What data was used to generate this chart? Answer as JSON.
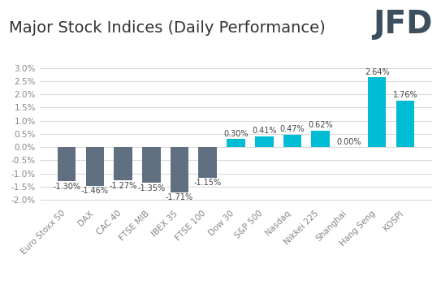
{
  "categories": [
    "Euro Stoxx 50",
    "DAX",
    "CAC 40",
    "FTSE MIB",
    "IBEX 35",
    "FTSE 100",
    "Dow 30",
    "S&P 500",
    "Nasdaq",
    "Nikkei 225",
    "Shanghai",
    "Hang Seng",
    "KOSPI"
  ],
  "values": [
    -1.3,
    -1.46,
    -1.27,
    -1.35,
    -1.71,
    -1.15,
    0.3,
    0.41,
    0.47,
    0.62,
    0.0,
    2.64,
    1.76
  ],
  "labels": [
    "-1.30%",
    "-1.46%",
    "-1.27%",
    "-1.35%",
    "-1.71%",
    "-1.15%",
    "0.30%",
    "0.41%",
    "0.47%",
    "0.62%",
    "0.00%",
    "2.64%",
    "1.76%"
  ],
  "negative_color": "#607080",
  "positive_color": "#00bcd4",
  "title": "Major Stock Indices (Daily Performance)",
  "title_fontsize": 14,
  "label_fontsize": 7,
  "tick_fontsize": 7.5,
  "ylim": [
    -2.2,
    3.2
  ],
  "background_color": "#ffffff",
  "grid_color": "#d0d0d0",
  "logo_text": "JFD",
  "logo_color": "#3d4f5c",
  "logo_fontsize": 28
}
